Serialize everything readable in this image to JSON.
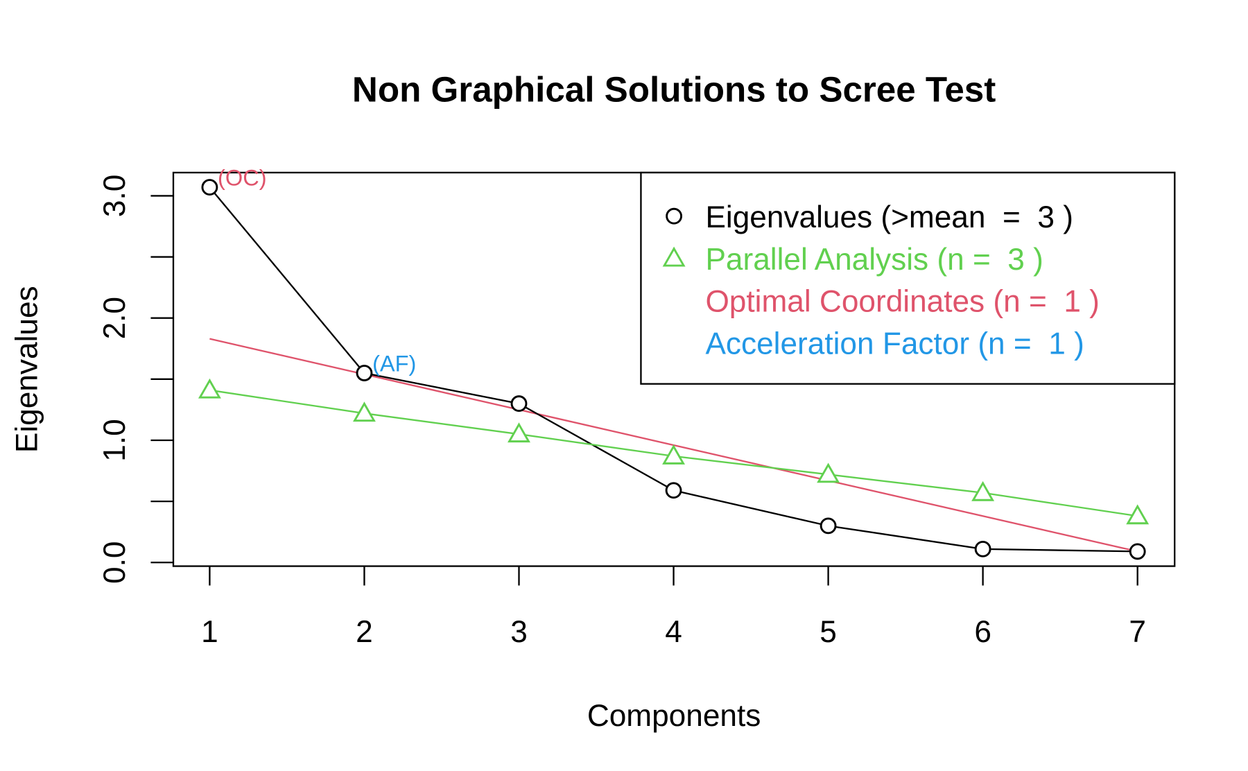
{
  "chart_data": {
    "type": "line",
    "title": "Non Graphical Solutions to Scree Test",
    "x_label": "Components",
    "y_label": "Eigenvalues",
    "x": [
      1,
      2,
      3,
      4,
      5,
      6,
      7
    ],
    "xlim": [
      0.765,
      7.24
    ],
    "ylim": [
      -0.03,
      3.19
    ],
    "xticks": [
      1,
      2,
      3,
      4,
      5,
      6,
      7
    ],
    "yticks": [
      {
        "value": 0,
        "label": "0.0"
      },
      {
        "value": 1,
        "label": "1.0"
      },
      {
        "value": 2,
        "label": "2.0"
      },
      {
        "value": 3,
        "label": "3.0"
      }
    ],
    "yticks_minor": [
      0.5,
      1.5,
      2.5
    ],
    "series": [
      {
        "color": "#000000",
        "marker": "circle",
        "values": [
          3.07,
          1.55,
          1.3,
          0.59,
          0.3,
          0.11,
          0.09
        ]
      },
      {
        "color": "#61D04F",
        "marker": "triangle",
        "values": [
          1.41,
          1.22,
          1.05,
          0.87,
          0.72,
          0.57,
          0.38
        ]
      }
    ],
    "oc_line": {
      "color": "#DF536B",
      "x": [
        1,
        7
      ],
      "values": [
        1.83,
        0.09
      ]
    },
    "annotations": [
      {
        "text": "(OC)",
        "color": "#DF536B",
        "series": 0,
        "index": 0
      },
      {
        "text": "(AF)",
        "color": "#2297E6",
        "series": 0,
        "index": 1
      }
    ],
    "legend": [
      {
        "text": "Eigenvalues (>mean  =  3 )",
        "color": "#000000",
        "marker": "circle"
      },
      {
        "text": "Parallel Analysis (n =  3 )",
        "color": "#61D04F",
        "marker": "triangle"
      },
      {
        "text": "Optimal Coordinates (n =  1 )",
        "color": "#DF536B",
        "marker": "none"
      },
      {
        "text": "Acceleration Factor (n =  1 )",
        "color": "#2297E6",
        "marker": "none"
      }
    ],
    "legend_position": "topright"
  }
}
